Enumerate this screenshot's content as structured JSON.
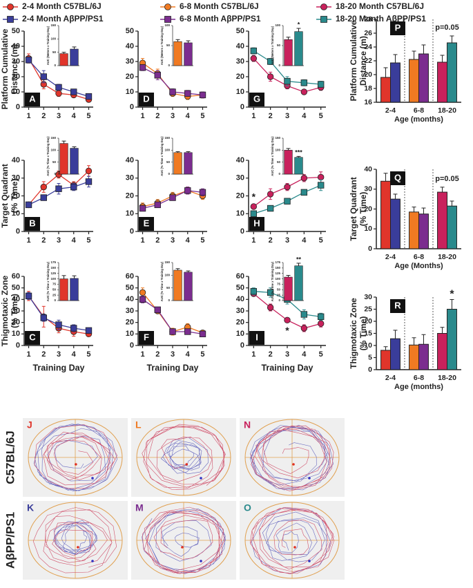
{
  "legend": [
    {
      "name": "2-4 Month C57BL/6J",
      "color": "#e0352b",
      "marker": "circle"
    },
    {
      "name": "6-8 Month C57BL/6J",
      "color": "#f07a22",
      "marker": "circle"
    },
    {
      "name": "18-20 Month C57BL/6J",
      "color": "#c8215c",
      "marker": "circle"
    },
    {
      "name": "2-4 Month AβPP/PS1",
      "color": "#3a3d9a",
      "marker": "square"
    },
    {
      "name": "6-8 Month AβPP/PS1",
      "color": "#7b2d8f",
      "marker": "square"
    },
    {
      "name": "18-20 Month AβPP/PS1",
      "color": "#2a8a8c",
      "marker": "square"
    }
  ],
  "chart_data": [
    {
      "type": "line",
      "panel": "A",
      "y_label": [
        "Platform Cumulative",
        "Distance (m)"
      ],
      "x": [
        1,
        2,
        3,
        4,
        5
      ],
      "xlim": [
        0.7,
        5.3
      ],
      "xticks": [
        1,
        2,
        3,
        4,
        5
      ],
      "ylim": [
        0,
        50
      ],
      "yticks": [
        0,
        10,
        20,
        30,
        40,
        50
      ],
      "series": [
        {
          "color": "#e0352b",
          "marker": "circle",
          "values": [
            32,
            15,
            9,
            8,
            5
          ],
          "errors": [
            3,
            3,
            2,
            1.5,
            1
          ]
        },
        {
          "color": "#3a3d9a",
          "marker": "square",
          "values": [
            31,
            20,
            13,
            10,
            7
          ],
          "errors": [
            2,
            4,
            2,
            1.5,
            1.5
          ]
        }
      ],
      "inset": {
        "type": "bar",
        "y_label": "AUC (Meters x Training Day)",
        "ylim": [
          0,
          150
        ],
        "yticks": [
          0,
          50,
          100,
          150
        ],
        "values": [
          45,
          62
        ],
        "errors": [
          5,
          8
        ],
        "colors": [
          "#e0352b",
          "#3a3d9a"
        ]
      }
    },
    {
      "type": "line",
      "panel": "B",
      "y_label": [
        "Target Quadrant",
        "(% Time)"
      ],
      "x": [
        1,
        2,
        3,
        4,
        5
      ],
      "xlim": [
        0.7,
        5.3
      ],
      "xticks": [
        1,
        2,
        3,
        4,
        5
      ],
      "ylim": [
        0,
        40
      ],
      "yticks": [
        0,
        10,
        20,
        30,
        40
      ],
      "series": [
        {
          "color": "#e0352b",
          "marker": "circle",
          "values": [
            15,
            25,
            32,
            26,
            34
          ],
          "errors": [
            1.5,
            3,
            2,
            2,
            3
          ]
        },
        {
          "color": "#3a3d9a",
          "marker": "square",
          "values": [
            15,
            19,
            24,
            25,
            28
          ],
          "errors": [
            1,
            1.5,
            3,
            2,
            3
          ]
        }
      ],
      "inset": {
        "type": "bar",
        "y_label": "AUC (% Time x Training Day)",
        "ylim": [
          0,
          150
        ],
        "yticks": [
          0,
          50,
          100,
          150
        ],
        "values": [
          128,
          108
        ],
        "errors": [
          10,
          6
        ],
        "colors": [
          "#e0352b",
          "#3a3d9a"
        ]
      }
    },
    {
      "type": "line",
      "panel": "C",
      "y_label": [
        "Thigmotaxic Zone",
        "(% Time)"
      ],
      "x_label": "Training Day",
      "x": [
        1,
        2,
        3,
        4,
        5
      ],
      "xlim": [
        0.7,
        5.3
      ],
      "xticks": [
        1,
        2,
        3,
        4,
        5
      ],
      "ylim": [
        0,
        60
      ],
      "yticks": [
        0,
        10,
        20,
        30,
        40,
        50,
        60
      ],
      "series": [
        {
          "color": "#e0352b",
          "marker": "circle",
          "values": [
            43,
            25,
            15,
            12,
            10
          ],
          "errors": [
            4,
            9,
            4,
            4,
            2
          ]
        },
        {
          "color": "#3a3d9a",
          "marker": "square",
          "values": [
            43,
            24,
            18,
            15,
            13
          ],
          "errors": [
            3,
            3,
            4,
            3,
            2
          ]
        }
      ],
      "inset": {
        "type": "bar",
        "y_label": "AUC (% Time x Training Day)",
        "ylim": [
          0,
          175
        ],
        "yticks": [
          0,
          25,
          50,
          75,
          100,
          125,
          150,
          175
        ],
        "values": [
          100,
          102
        ],
        "errors": [
          15,
          12
        ],
        "colors": [
          "#e0352b",
          "#3a3d9a"
        ]
      }
    },
    {
      "type": "line",
      "panel": "D",
      "x": [
        1,
        2,
        3,
        4,
        5
      ],
      "xlim": [
        0.7,
        5.3
      ],
      "xticks": [
        1,
        2,
        3,
        4,
        5
      ],
      "ylim": [
        0,
        50
      ],
      "yticks": [
        0,
        10,
        20,
        30,
        40,
        50
      ],
      "series": [
        {
          "color": "#f07a22",
          "marker": "circle",
          "values": [
            29,
            22,
            9,
            7,
            8
          ],
          "errors": [
            3,
            3,
            2,
            2,
            2
          ]
        },
        {
          "color": "#7b2d8f",
          "marker": "square",
          "values": [
            26,
            21,
            10,
            9,
            8
          ],
          "errors": [
            2,
            3,
            2,
            2,
            2
          ]
        }
      ],
      "inset": {
        "type": "bar",
        "y_label": "AUC (Meters x Training Day)",
        "ylim": [
          0,
          100
        ],
        "yticks": [
          0,
          50,
          100
        ],
        "values": [
          60,
          57
        ],
        "errors": [
          5,
          5
        ],
        "colors": [
          "#f07a22",
          "#7b2d8f"
        ]
      }
    },
    {
      "type": "line",
      "panel": "E",
      "x": [
        1,
        2,
        3,
        4,
        5
      ],
      "xlim": [
        0.7,
        5.3
      ],
      "xticks": [
        1,
        2,
        3,
        4,
        5
      ],
      "ylim": [
        0,
        40
      ],
      "yticks": [
        0,
        10,
        20,
        30,
        40
      ],
      "series": [
        {
          "color": "#f07a22",
          "marker": "circle",
          "values": [
            14,
            16,
            20,
            23,
            20
          ],
          "errors": [
            2,
            2,
            2,
            2,
            2
          ]
        },
        {
          "color": "#7b2d8f",
          "marker": "square",
          "values": [
            13,
            15,
            19,
            23,
            22
          ],
          "errors": [
            1.5,
            1.5,
            1.5,
            2,
            2
          ]
        }
      ],
      "inset": {
        "type": "bar",
        "y_label": "AUC (% Time x Training Day)",
        "ylim": [
          0,
          150
        ],
        "yticks": [
          0,
          50,
          100,
          150
        ],
        "values": [
          90,
          90
        ],
        "errors": [
          4,
          4
        ],
        "colors": [
          "#f07a22",
          "#7b2d8f"
        ]
      }
    },
    {
      "type": "line",
      "panel": "F",
      "x_label": "Training Day",
      "x": [
        1,
        2,
        3,
        4,
        5
      ],
      "xlim": [
        0.7,
        5.3
      ],
      "xticks": [
        1,
        2,
        3,
        4,
        5
      ],
      "ylim": [
        0,
        60
      ],
      "yticks": [
        0,
        10,
        20,
        30,
        40,
        50,
        60
      ],
      "series": [
        {
          "color": "#f07a22",
          "marker": "circle",
          "values": [
            46,
            30,
            12,
            16,
            11
          ],
          "errors": [
            4,
            2,
            3,
            3,
            2
          ]
        },
        {
          "color": "#7b2d8f",
          "marker": "square",
          "values": [
            40,
            31,
            12,
            12,
            10
          ],
          "errors": [
            3,
            2,
            2,
            2,
            2
          ]
        }
      ],
      "inset": {
        "type": "bar",
        "y_label": "AUC (% Time x Training Day)",
        "ylim": [
          0,
          150
        ],
        "yticks": [
          0,
          50,
          100,
          150
        ],
        "values": [
          120,
          112
        ],
        "errors": [
          6,
          5
        ],
        "colors": [
          "#f07a22",
          "#7b2d8f"
        ]
      }
    },
    {
      "type": "line",
      "panel": "G",
      "x": [
        1,
        2,
        3,
        4,
        5
      ],
      "xlim": [
        0.7,
        5.3
      ],
      "xticks": [
        1,
        2,
        3,
        4,
        5
      ],
      "ylim": [
        0,
        50
      ],
      "yticks": [
        0,
        10,
        20,
        30,
        40,
        50
      ],
      "series": [
        {
          "color": "#c8215c",
          "marker": "circle",
          "values": [
            32,
            20,
            14,
            10,
            13
          ],
          "errors": [
            2,
            3,
            2,
            1,
            2
          ]
        },
        {
          "color": "#2a8a8c",
          "marker": "square",
          "values": [
            37,
            30,
            17,
            16,
            15
          ],
          "errors": [
            2,
            2,
            3,
            2,
            2
          ]
        }
      ],
      "inset": {
        "type": "bar",
        "y_label": "AUC (Meters x Training Day)",
        "ylim": [
          0,
          100
        ],
        "yticks": [
          0,
          50,
          100
        ],
        "values": [
          65,
          85
        ],
        "errors": [
          6,
          8
        ],
        "colors": [
          "#c8215c",
          "#2a8a8c"
        ],
        "annotations": [
          "*"
        ]
      }
    },
    {
      "type": "line",
      "panel": "H",
      "x": [
        1,
        2,
        3,
        4,
        5
      ],
      "xlim": [
        0.7,
        5.3
      ],
      "xticks": [
        1,
        2,
        3,
        4,
        5
      ],
      "ylim": [
        0,
        40
      ],
      "yticks": [
        0,
        10,
        20,
        30,
        40
      ],
      "series": [
        {
          "color": "#c8215c",
          "marker": "circle",
          "values": [
            14,
            21,
            25,
            30,
            30.5
          ],
          "errors": [
            1,
            3,
            2,
            2,
            3
          ]
        },
        {
          "color": "#2a8a8c",
          "marker": "square",
          "values": [
            10,
            13,
            17,
            22,
            26
          ],
          "errors": [
            1,
            1,
            1.5,
            1.5,
            3
          ]
        }
      ],
      "annotations": [
        "*"
      ],
      "inset": {
        "type": "bar",
        "y_label": "AUC (% Time x Training Day)",
        "ylim": [
          0,
          150
        ],
        "yticks": [
          0,
          50,
          100,
          150
        ],
        "values": [
          100,
          70
        ],
        "errors": [
          7,
          4
        ],
        "colors": [
          "#c8215c",
          "#2a8a8c"
        ],
        "annotations": [
          "***"
        ]
      }
    },
    {
      "type": "line",
      "panel": "I",
      "x_label": "Training Day",
      "x": [
        1,
        2,
        3,
        4,
        5
      ],
      "xlim": [
        0.7,
        5.3
      ],
      "xticks": [
        1,
        2,
        3,
        4,
        5
      ],
      "ylim": [
        0,
        60
      ],
      "yticks": [
        0,
        10,
        20,
        30,
        40,
        50,
        60
      ],
      "series": [
        {
          "color": "#c8215c",
          "marker": "circle",
          "values": [
            45,
            33,
            22,
            15,
            19
          ],
          "errors": [
            2,
            3,
            2,
            3,
            3
          ]
        },
        {
          "color": "#2a8a8c",
          "marker": "square",
          "values": [
            47,
            46,
            40,
            27,
            25
          ],
          "errors": [
            3,
            4,
            4,
            4,
            3
          ]
        }
      ],
      "annotations": [
        "*"
      ],
      "inset": {
        "type": "bar",
        "y_label": "AUC (% Time x Training Day)",
        "ylim": [
          0,
          175
        ],
        "yticks": [
          0,
          25,
          50,
          75,
          100,
          125,
          150,
          175
        ],
        "values": [
          108,
          160
        ],
        "errors": [
          8,
          12
        ],
        "colors": [
          "#c8215c",
          "#2a8a8c"
        ],
        "annotations": [
          "**"
        ]
      }
    },
    {
      "type": "bar",
      "panel": "P",
      "y_label": [
        "Platform Cumulative",
        "Distance (m)"
      ],
      "x_label": "Age (months)",
      "categories": [
        "2-4",
        "6-8",
        "18-20"
      ],
      "ylim": [
        16,
        28
      ],
      "yticks": [
        16,
        18,
        20,
        22,
        24,
        26,
        28
      ],
      "series": [
        {
          "colors": [
            "#e0352b",
            "#f07a22",
            "#c8215c"
          ],
          "values": [
            19.6,
            22.2,
            21.8
          ],
          "errors": [
            1.4,
            1.2,
            1
          ]
        },
        {
          "colors": [
            "#3a3d9a",
            "#7b2d8f",
            "#2a8a8c"
          ],
          "values": [
            21.7,
            23,
            24.6
          ],
          "errors": [
            1.2,
            1.3,
            1
          ]
        }
      ],
      "annotations": [
        "p=0.05"
      ]
    },
    {
      "type": "bar",
      "panel": "Q",
      "y_label": [
        "Target Quadrant",
        "(% Time)"
      ],
      "x_label": "Age (Months)",
      "categories": [
        "2-4",
        "6-8",
        "18-20"
      ],
      "ylim": [
        0,
        40
      ],
      "yticks": [
        0,
        10,
        20,
        30,
        40
      ],
      "series": [
        {
          "colors": [
            "#e0352b",
            "#f07a22",
            "#c8215c"
          ],
          "values": [
            34,
            18.5,
            28.5
          ],
          "errors": [
            4,
            2.5,
            2.5
          ]
        },
        {
          "colors": [
            "#3a3d9a",
            "#7b2d8f",
            "#2a8a8c"
          ],
          "values": [
            25,
            17.5,
            21.5
          ],
          "errors": [
            2.5,
            3,
            2.5
          ]
        }
      ],
      "annotations": [
        "p=0.05"
      ]
    },
    {
      "type": "bar",
      "panel": "R",
      "y_label": [
        "Thigmotaxic Zone",
        "(% Time)"
      ],
      "x_label": "Age (months)",
      "categories": [
        "2-4",
        "6-8",
        "18-20"
      ],
      "ylim": [
        0,
        30
      ],
      "yticks": [
        0,
        5,
        10,
        15,
        20,
        25,
        30
      ],
      "series": [
        {
          "colors": [
            "#e0352b",
            "#f07a22",
            "#c8215c"
          ],
          "values": [
            8,
            10.2,
            15
          ],
          "errors": [
            1.5,
            3,
            2.5
          ]
        },
        {
          "colors": [
            "#3a3d9a",
            "#7b2d8f",
            "#2a8a8c"
          ],
          "values": [
            12.8,
            10.5,
            25
          ],
          "errors": [
            3.5,
            4,
            4
          ]
        }
      ],
      "annotations": [
        "*"
      ]
    }
  ],
  "tracks": {
    "rows": [
      "C57BL/6J",
      "AβPP/PS1"
    ],
    "panels": [
      [
        "J",
        "L",
        "N"
      ],
      [
        "K",
        "M",
        "O"
      ]
    ],
    "panel_colors": [
      [
        "#e0352b",
        "#f07a22",
        "#c8215c"
      ],
      [
        "#3a3d9a",
        "#7b2d8f",
        "#2a8a8c"
      ]
    ]
  }
}
